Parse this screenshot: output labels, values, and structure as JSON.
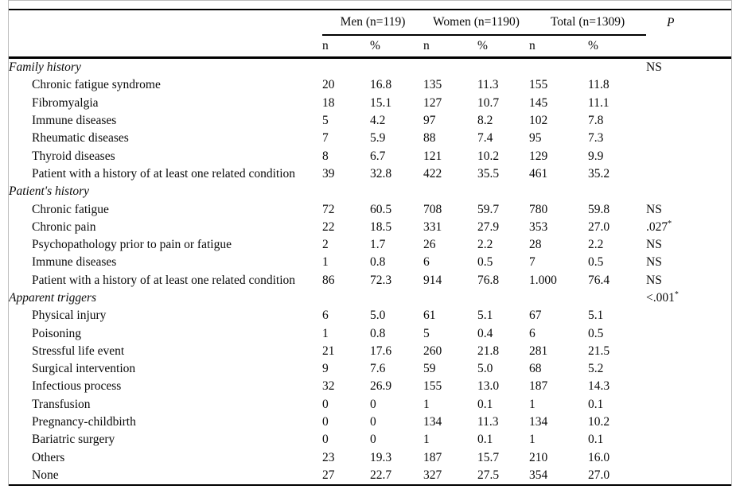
{
  "figure": {
    "border_color": "#bdbdbd",
    "rule_color": "#000000"
  },
  "table": {
    "groups": [
      {
        "label": "Men (n=119)"
      },
      {
        "label": "Women (n=1190)"
      },
      {
        "label": "Total (n=1309)"
      }
    ],
    "p_header": "P",
    "subheaders": [
      "n",
      "%",
      "n",
      "%",
      "n",
      "%"
    ],
    "rows": [
      {
        "label": "Family history",
        "section": true,
        "values": [
          "",
          "",
          "",
          "",
          "",
          ""
        ],
        "p": "NS",
        "p_sup": ""
      },
      {
        "label": "Chronic fatigue syndrome",
        "section": false,
        "values": [
          "20",
          "16.8",
          "135",
          "11.3",
          "155",
          "11.8"
        ],
        "p": "",
        "p_sup": ""
      },
      {
        "label": "Fibromyalgia",
        "section": false,
        "values": [
          "18",
          "15.1",
          "127",
          "10.7",
          "145",
          "11.1"
        ],
        "p": "",
        "p_sup": ""
      },
      {
        "label": "Immune diseases",
        "section": false,
        "values": [
          "5",
          "4.2",
          "97",
          "8.2",
          "102",
          "7.8"
        ],
        "p": "",
        "p_sup": ""
      },
      {
        "label": "Rheumatic diseases",
        "section": false,
        "values": [
          "7",
          "5.9",
          "88",
          "7.4",
          "95",
          "7.3"
        ],
        "p": "",
        "p_sup": ""
      },
      {
        "label": "Thyroid diseases",
        "section": false,
        "values": [
          "8",
          "6.7",
          "121",
          "10.2",
          "129",
          "9.9"
        ],
        "p": "",
        "p_sup": ""
      },
      {
        "label": "Patient with a history of at least one related condition",
        "section": false,
        "values": [
          "39",
          "32.8",
          "422",
          "35.5",
          "461",
          "35.2"
        ],
        "p": "",
        "p_sup": ""
      },
      {
        "label": "Patient's history",
        "section": true,
        "values": [
          "",
          "",
          "",
          "",
          "",
          ""
        ],
        "p": "",
        "p_sup": ""
      },
      {
        "label": "Chronic fatigue",
        "section": false,
        "values": [
          "72",
          "60.5",
          "708",
          "59.7",
          "780",
          "59.8"
        ],
        "p": "NS",
        "p_sup": ""
      },
      {
        "label": "Chronic pain",
        "section": false,
        "values": [
          "22",
          "18.5",
          "331",
          "27.9",
          "353",
          "27.0"
        ],
        "p": ".027",
        "p_sup": "*"
      },
      {
        "label": "Psychopathology prior to pain or fatigue",
        "section": false,
        "values": [
          "2",
          "1.7",
          "26",
          "2.2",
          "28",
          "2.2"
        ],
        "p": "NS",
        "p_sup": ""
      },
      {
        "label": "Immune diseases",
        "section": false,
        "values": [
          "1",
          "0.8",
          "6",
          "0.5",
          "7",
          "0.5"
        ],
        "p": "NS",
        "p_sup": ""
      },
      {
        "label": "Patient with a history of at least one related condition",
        "section": false,
        "values": [
          "86",
          "72.3",
          "914",
          "76.8",
          "1.000",
          "76.4"
        ],
        "p": "NS",
        "p_sup": ""
      },
      {
        "label": "Apparent triggers",
        "section": true,
        "values": [
          "",
          "",
          "",
          "",
          "",
          ""
        ],
        "p": "<.001",
        "p_sup": "*"
      },
      {
        "label": "Physical injury",
        "section": false,
        "values": [
          "6",
          "5.0",
          "61",
          "5.1",
          "67",
          "5.1"
        ],
        "p": "",
        "p_sup": ""
      },
      {
        "label": "Poisoning",
        "section": false,
        "values": [
          "1",
          "0.8",
          "5",
          "0.4",
          "6",
          "0.5"
        ],
        "p": "",
        "p_sup": ""
      },
      {
        "label": "Stressful life event",
        "section": false,
        "values": [
          "21",
          "17.6",
          "260",
          "21.8",
          "281",
          "21.5"
        ],
        "p": "",
        "p_sup": ""
      },
      {
        "label": "Surgical intervention",
        "section": false,
        "values": [
          "9",
          "7.6",
          "59",
          "5.0",
          "68",
          "5.2"
        ],
        "p": "",
        "p_sup": ""
      },
      {
        "label": "Infectious process",
        "section": false,
        "values": [
          "32",
          "26.9",
          "155",
          "13.0",
          "187",
          "14.3"
        ],
        "p": "",
        "p_sup": ""
      },
      {
        "label": "Transfusion",
        "section": false,
        "values": [
          "0",
          "0",
          "1",
          "0.1",
          "1",
          "0.1"
        ],
        "p": "",
        "p_sup": ""
      },
      {
        "label": "Pregnancy-childbirth",
        "section": false,
        "values": [
          "0",
          "0",
          "134",
          "11.3",
          "134",
          "10.2"
        ],
        "p": "",
        "p_sup": ""
      },
      {
        "label": "Bariatric surgery",
        "section": false,
        "values": [
          "0",
          "0",
          "1",
          "0.1",
          "1",
          "0.1"
        ],
        "p": "",
        "p_sup": ""
      },
      {
        "label": "Others",
        "section": false,
        "values": [
          "23",
          "19.3",
          "187",
          "15.7",
          "210",
          "16.0"
        ],
        "p": "",
        "p_sup": ""
      },
      {
        "label": "None",
        "section": false,
        "values": [
          "27",
          "22.7",
          "327",
          "27.5",
          "354",
          "27.0"
        ],
        "p": "",
        "p_sup": ""
      }
    ]
  }
}
